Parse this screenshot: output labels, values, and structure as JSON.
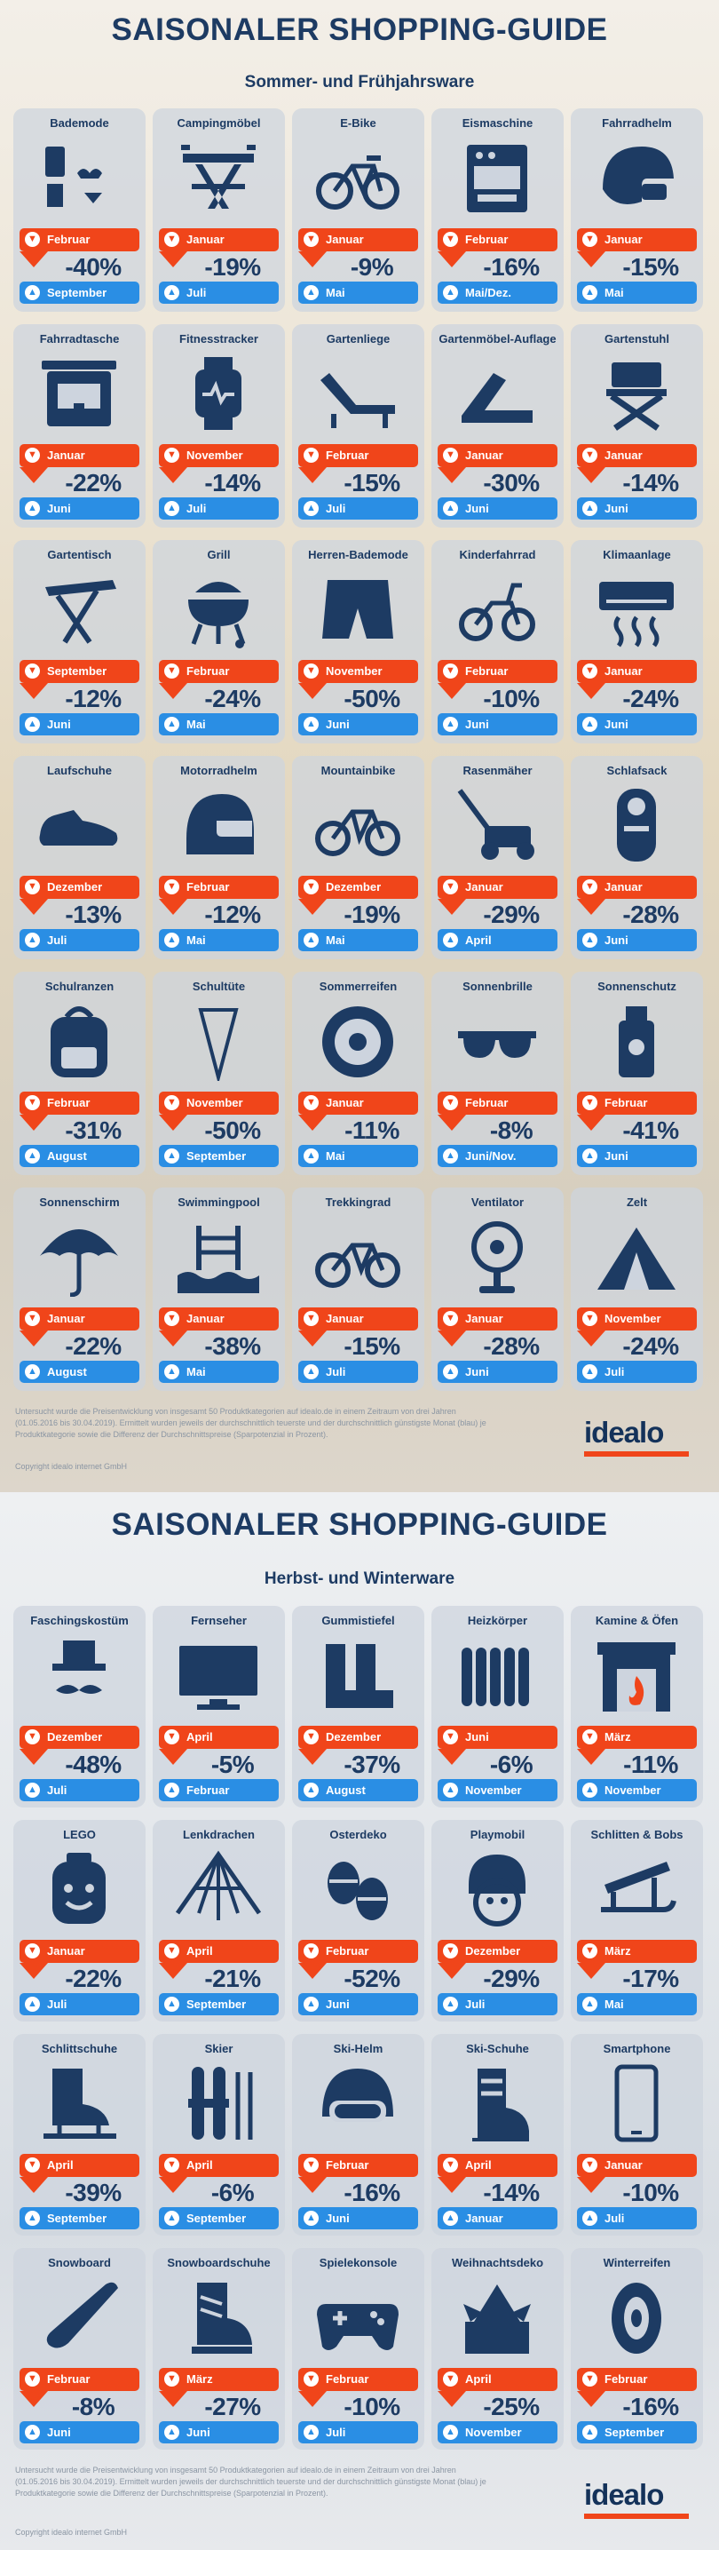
{
  "colors": {
    "title": "#1d3b63",
    "low": "#f0451a",
    "high": "#2a8ee4",
    "card": "#cdd4de"
  },
  "sections": [
    {
      "title": "SAISONALER SHOPPING-GUIDE",
      "subtitle": "Sommer- und Frühjahrsware",
      "items": [
        {
          "name": "Bademode",
          "icon": "swimwear-icon",
          "low": "Februar",
          "pct": "-40%",
          "high": "September"
        },
        {
          "name": "Campingmöbel",
          "icon": "camping-table-icon",
          "low": "Januar",
          "pct": "-19%",
          "high": "Juli"
        },
        {
          "name": "E-Bike",
          "icon": "bicycle-icon",
          "low": "Januar",
          "pct": "-9%",
          "high": "Mai"
        },
        {
          "name": "Eismaschine",
          "icon": "ice-machine-icon",
          "low": "Februar",
          "pct": "-16%",
          "high": "Mai/Dez."
        },
        {
          "name": "Fahrradhelm",
          "icon": "helmet-icon",
          "low": "Januar",
          "pct": "-15%",
          "high": "Mai"
        },
        {
          "name": "Fahrradtasche",
          "icon": "bike-bag-icon",
          "low": "Januar",
          "pct": "-22%",
          "high": "Juni"
        },
        {
          "name": "Fitnesstracker",
          "icon": "fitness-tracker-icon",
          "low": "November",
          "pct": "-14%",
          "high": "Juli"
        },
        {
          "name": "Gartenliege",
          "icon": "sun-lounger-icon",
          "low": "Februar",
          "pct": "-15%",
          "high": "Juli"
        },
        {
          "name": "Gartenmöbel-Auflage",
          "icon": "cushion-icon",
          "low": "Januar",
          "pct": "-30%",
          "high": "Juni"
        },
        {
          "name": "Gartenstuhl",
          "icon": "garden-chair-icon",
          "low": "Januar",
          "pct": "-14%",
          "high": "Juni"
        },
        {
          "name": "Gartentisch",
          "icon": "garden-table-icon",
          "low": "September",
          "pct": "-12%",
          "high": "Juni"
        },
        {
          "name": "Grill",
          "icon": "grill-icon",
          "low": "Februar",
          "pct": "-24%",
          "high": "Mai"
        },
        {
          "name": "Herren-Bademode",
          "icon": "swim-shorts-icon",
          "low": "November",
          "pct": "-50%",
          "high": "Juni"
        },
        {
          "name": "Kinderfahrrad",
          "icon": "kids-bike-icon",
          "low": "Februar",
          "pct": "-10%",
          "high": "Juni"
        },
        {
          "name": "Klimaanlage",
          "icon": "air-conditioner-icon",
          "low": "Januar",
          "pct": "-24%",
          "high": "Juni"
        },
        {
          "name": "Laufschuhe",
          "icon": "running-shoe-icon",
          "low": "Dezember",
          "pct": "-13%",
          "high": "Juli"
        },
        {
          "name": "Motorradhelm",
          "icon": "motorcycle-helmet-icon",
          "low": "Februar",
          "pct": "-12%",
          "high": "Mai"
        },
        {
          "name": "Mountainbike",
          "icon": "mountainbike-icon",
          "low": "Dezember",
          "pct": "-19%",
          "high": "Mai"
        },
        {
          "name": "Rasenmäher",
          "icon": "lawn-mower-icon",
          "low": "Januar",
          "pct": "-29%",
          "high": "April"
        },
        {
          "name": "Schlafsack",
          "icon": "sleeping-bag-icon",
          "low": "Januar",
          "pct": "-28%",
          "high": "Juni"
        },
        {
          "name": "Schulranzen",
          "icon": "backpack-icon",
          "low": "Februar",
          "pct": "-31%",
          "high": "August"
        },
        {
          "name": "Schultüte",
          "icon": "school-cone-icon",
          "low": "November",
          "pct": "-50%",
          "high": "September"
        },
        {
          "name": "Sommerreifen",
          "icon": "tire-icon",
          "low": "Januar",
          "pct": "-11%",
          "high": "Mai"
        },
        {
          "name": "Sonnenbrille",
          "icon": "sunglasses-icon",
          "low": "Februar",
          "pct": "-8%",
          "high": "Juni/Nov."
        },
        {
          "name": "Sonnenschutz",
          "icon": "sunscreen-icon",
          "low": "Februar",
          "pct": "-41%",
          "high": "Juni"
        },
        {
          "name": "Sonnenschirm",
          "icon": "umbrella-icon",
          "low": "Januar",
          "pct": "-22%",
          "high": "August"
        },
        {
          "name": "Swimmingpool",
          "icon": "pool-icon",
          "low": "Januar",
          "pct": "-38%",
          "high": "Mai"
        },
        {
          "name": "Trekkingrad",
          "icon": "trekking-bike-icon",
          "low": "Januar",
          "pct": "-15%",
          "high": "Juli"
        },
        {
          "name": "Ventilator",
          "icon": "fan-icon",
          "low": "Januar",
          "pct": "-28%",
          "high": "Juni"
        },
        {
          "name": "Zelt",
          "icon": "tent-icon",
          "low": "November",
          "pct": "-24%",
          "high": "Juli"
        }
      ],
      "footnote": "Untersucht wurde die Preisentwicklung von insgesamt 50 Produktkategorien auf idealo.de in einem Zeitraum von drei Jahren (01.05.2016 bis 30.04.2019). Ermittelt wurden jeweils der durchschnittlich teuerste und der durchschnittlich günstigste Monat (blau) je Produktkategorie sowie die Differenz der Durchschnittspreise (Sparpotenzial in Prozent).",
      "copyright": "Copyright idealo internet GmbH",
      "logo": "idealo"
    },
    {
      "title": "SAISONALER SHOPPING-GUIDE",
      "subtitle": "Herbst- und Winterware",
      "items": [
        {
          "name": "Faschingskostüm",
          "icon": "costume-icon",
          "low": "Dezember",
          "pct": "-48%",
          "high": "Juli"
        },
        {
          "name": "Fernseher",
          "icon": "tv-icon",
          "low": "April",
          "pct": "-5%",
          "high": "Februar"
        },
        {
          "name": "Gummistiefel",
          "icon": "rubber-boots-icon",
          "low": "Dezember",
          "pct": "-37%",
          "high": "August"
        },
        {
          "name": "Heizkörper",
          "icon": "radiator-icon",
          "low": "Juni",
          "pct": "-6%",
          "high": "November"
        },
        {
          "name": "Kamine & Öfen",
          "icon": "fireplace-icon",
          "low": "März",
          "pct": "-11%",
          "high": "November"
        },
        {
          "name": "LEGO",
          "icon": "lego-figure-icon",
          "low": "Januar",
          "pct": "-22%",
          "high": "Juli"
        },
        {
          "name": "Lenkdrachen",
          "icon": "kite-icon",
          "low": "April",
          "pct": "-21%",
          "high": "September"
        },
        {
          "name": "Osterdeko",
          "icon": "easter-eggs-icon",
          "low": "Februar",
          "pct": "-52%",
          "high": "Juni"
        },
        {
          "name": "Playmobil",
          "icon": "playmobil-icon",
          "low": "Dezember",
          "pct": "-29%",
          "high": "Juli"
        },
        {
          "name": "Schlitten & Bobs",
          "icon": "sled-icon",
          "low": "März",
          "pct": "-17%",
          "high": "Mai"
        },
        {
          "name": "Schlittschuhe",
          "icon": "ice-skate-icon",
          "low": "April",
          "pct": "-39%",
          "high": "September"
        },
        {
          "name": "Skier",
          "icon": "skis-icon",
          "low": "April",
          "pct": "-6%",
          "high": "September"
        },
        {
          "name": "Ski-Helm",
          "icon": "ski-helmet-icon",
          "low": "Februar",
          "pct": "-16%",
          "high": "Juni"
        },
        {
          "name": "Ski-Schuhe",
          "icon": "ski-boot-icon",
          "low": "April",
          "pct": "-14%",
          "high": "Januar"
        },
        {
          "name": "Smartphone",
          "icon": "smartphone-icon",
          "low": "Januar",
          "pct": "-10%",
          "high": "Juli"
        },
        {
          "name": "Snowboard",
          "icon": "snowboard-icon",
          "low": "Februar",
          "pct": "-8%",
          "high": "Juni"
        },
        {
          "name": "Snowboardschuhe",
          "icon": "snowboard-boot-icon",
          "low": "März",
          "pct": "-27%",
          "high": "Juni"
        },
        {
          "name": "Spielekonsole",
          "icon": "gamepad-icon",
          "low": "Februar",
          "pct": "-10%",
          "high": "Juli"
        },
        {
          "name": "Weihnachtsdeko",
          "icon": "christmas-deco-icon",
          "low": "April",
          "pct": "-25%",
          "high": "November"
        },
        {
          "name": "Winterreifen",
          "icon": "winter-tire-icon",
          "low": "Februar",
          "pct": "-16%",
          "high": "September"
        }
      ],
      "footnote": "Untersucht wurde die Preisentwicklung von insgesamt 50 Produktkategorien auf idealo.de in einem Zeitraum von drei Jahren (01.05.2016 bis 30.04.2019). Ermittelt wurden jeweils der durchschnittlich teuerste und der durchschnittlich günstigste Monat (blau) je Produktkategorie sowie die Differenz der Durchschnittspreise (Sparpotenzial in Prozent).",
      "copyright": "Copyright idealo internet GmbH",
      "logo": "idealo"
    }
  ]
}
